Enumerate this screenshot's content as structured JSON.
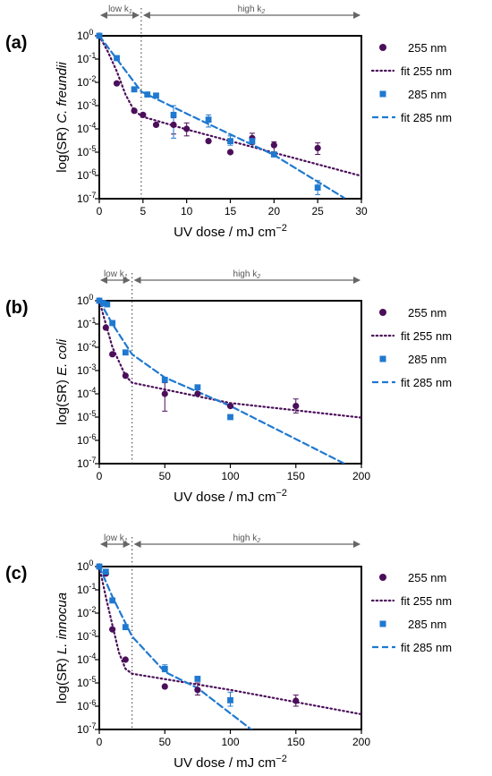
{
  "colors": {
    "c255": "#4b0f5a",
    "c285": "#2079d0",
    "arrow": "#666666"
  },
  "chart_data": [
    {
      "type": "scatter",
      "panel": "(a)",
      "species": "C. freundii",
      "xlabel": "UV dose / mJ cm",
      "xunit_exp": "−2",
      "ylabel_prefix": "log(SR) ",
      "xlim": [
        0,
        30
      ],
      "xticks": [
        0,
        5,
        10,
        15,
        20,
        25,
        30
      ],
      "ylim_exp": [
        -7,
        0
      ],
      "yscale": "log",
      "region_split": 4.8,
      "region_low": "low k",
      "region_low_sub": "1",
      "region_high": "high k",
      "region_high_sub": "2",
      "legend": [
        "255 nm",
        "fit 255 nm",
        "285 nm",
        "fit 285 nm"
      ],
      "series": [
        {
          "name": "255 nm",
          "points": [
            [
              0,
              1
            ],
            [
              2,
              0.009
            ],
            [
              4,
              0.0006
            ],
            [
              5,
              0.0004
            ],
            [
              6.5,
              0.00015
            ],
            [
              8.5,
              0.00015
            ],
            [
              10,
              0.0001
            ],
            [
              12.5,
              3e-05
            ],
            [
              15,
              1e-05
            ],
            [
              17.5,
              4e-05
            ],
            [
              20,
              2e-05
            ],
            [
              25,
              1.5e-05
            ]
          ],
          "errors": [
            null,
            null,
            null,
            null,
            null,
            [
              6e-05,
              0.0003
            ],
            [
              5e-05,
              0.00018
            ],
            null,
            null,
            [
              2.2e-05,
              6.5e-05
            ],
            [
              1e-05,
              2.8e-05
            ],
            [
              8e-06,
              2.5e-05
            ]
          ]
        },
        {
          "name": "285 nm",
          "points": [
            [
              0,
              1
            ],
            [
              2,
              0.11
            ],
            [
              4,
              0.005
            ],
            [
              5.5,
              0.003
            ],
            [
              6.5,
              0.0027
            ],
            [
              8.5,
              0.0004
            ],
            [
              12.5,
              0.00025
            ],
            [
              15,
              3e-05
            ],
            [
              17.5,
              3e-05
            ],
            [
              20,
              8e-06
            ],
            [
              25,
              3e-07
            ]
          ],
          "errors": [
            null,
            null,
            null,
            null,
            null,
            [
              4e-05,
              0.001
            ],
            [
              0.00012,
              0.0004
            ],
            [
              2e-05,
              5e-05
            ],
            null,
            null,
            [
              1.5e-07,
              6e-07
            ]
          ]
        },
        {
          "name": "fit 255 nm",
          "line": [
            [
              0,
              1
            ],
            [
              1,
              0.2
            ],
            [
              2,
              0.03
            ],
            [
              3,
              0.003
            ],
            [
              4,
              0.0006
            ],
            [
              5,
              0.00033
            ],
            [
              10,
              9.5e-05
            ],
            [
              20,
              9.5e-06
            ],
            [
              30,
              9.5e-07
            ]
          ]
        },
        {
          "name": "fit 285 nm",
          "line": [
            [
              0,
              1
            ],
            [
              4.8,
              0.004
            ],
            [
              10,
              0.00045
            ],
            [
              20,
              7.5e-06
            ],
            [
              28,
              1.1e-07
            ]
          ]
        }
      ]
    },
    {
      "type": "scatter",
      "panel": "(b)",
      "species": "E. coli",
      "xlabel": "UV dose / mJ cm",
      "xunit_exp": "−2",
      "ylabel_prefix": "log(SR) ",
      "xlim": [
        0,
        200
      ],
      "xticks": [
        0,
        50,
        100,
        150,
        200
      ],
      "ylim_exp": [
        -7,
        0
      ],
      "yscale": "log",
      "region_split": 25,
      "region_low": "low k",
      "region_low_sub": "1",
      "region_high": "high k",
      "region_high_sub": "2",
      "legend": [
        "255 nm",
        "fit 255 nm",
        "285 nm",
        "fit 285 nm"
      ],
      "series": [
        {
          "name": "255 nm",
          "points": [
            [
              0,
              1
            ],
            [
              5,
              0.07
            ],
            [
              10,
              0.005
            ],
            [
              20,
              0.0006
            ],
            [
              50,
              0.0001
            ],
            [
              75,
              0.0001
            ],
            [
              100,
              3e-05
            ],
            [
              150,
              3e-05
            ]
          ],
          "errors": [
            null,
            null,
            null,
            null,
            [
              1.8e-05,
              0.0003
            ],
            null,
            null,
            [
              1.5e-05,
              6e-05
            ]
          ]
        },
        {
          "name": "285 nm",
          "points": [
            [
              0,
              1
            ],
            [
              3,
              0.8
            ],
            [
              6,
              0.7
            ],
            [
              10,
              0.11
            ],
            [
              20,
              0.006
            ],
            [
              50,
              0.0004
            ],
            [
              75,
              0.00019
            ],
            [
              100,
              1e-05
            ]
          ],
          "errors": [
            null,
            null,
            null,
            null,
            null,
            null,
            null,
            null
          ]
        },
        {
          "name": "fit 255 nm",
          "line": [
            [
              0,
              1
            ],
            [
              5,
              0.1
            ],
            [
              10,
              0.01
            ],
            [
              20,
              0.0006
            ],
            [
              25,
              0.0003
            ],
            [
              100,
              4e-05
            ],
            [
              200,
              9.5e-06
            ]
          ]
        },
        {
          "name": "fit 285 nm",
          "line": [
            [
              0,
              1
            ],
            [
              10,
              0.1
            ],
            [
              25,
              0.005
            ],
            [
              50,
              0.0005
            ],
            [
              100,
              3e-05
            ],
            [
              187,
              1e-07
            ]
          ]
        }
      ]
    },
    {
      "type": "scatter",
      "panel": "(c)",
      "species": "L. innocua",
      "xlabel": "UV dose / mJ cm",
      "xunit_exp": "−2",
      "ylabel_prefix": "log(SR) ",
      "xlim": [
        0,
        200
      ],
      "xticks": [
        0,
        50,
        100,
        150,
        200
      ],
      "ylim_exp": [
        -7,
        0
      ],
      "yscale": "log",
      "region_split": 25,
      "region_low": "low k",
      "region_low_sub": "1",
      "region_high": "high k",
      "region_high_sub": "2",
      "legend": [
        "255 nm",
        "fit 255 nm",
        "285 nm",
        "fit 285 nm"
      ],
      "series": [
        {
          "name": "255 nm",
          "points": [
            [
              0,
              1
            ],
            [
              5,
              0.5
            ],
            [
              10,
              0.002
            ],
            [
              20,
              0.0001
            ],
            [
              50,
              7e-06
            ],
            [
              75,
              5e-06
            ],
            [
              150,
              1.7e-06
            ]
          ],
          "errors": [
            null,
            null,
            null,
            null,
            null,
            [
              3e-06,
              1e-05
            ],
            [
              1e-06,
              3e-06
            ]
          ]
        },
        {
          "name": "285 nm",
          "points": [
            [
              0,
              1
            ],
            [
              5,
              0.6
            ],
            [
              10,
              0.035
            ],
            [
              20,
              0.0025
            ],
            [
              50,
              4e-05
            ],
            [
              75,
              1.5e-05
            ],
            [
              100,
              1.8e-06
            ]
          ],
          "errors": [
            null,
            null,
            null,
            null,
            [
              3e-05,
              6e-05
            ],
            null,
            [
              1e-06,
              4e-06
            ]
          ]
        },
        {
          "name": "fit 255 nm",
          "line": [
            [
              0,
              1
            ],
            [
              5,
              0.05
            ],
            [
              10,
              0.003
            ],
            [
              15,
              0.0002
            ],
            [
              20,
              4e-05
            ],
            [
              25,
              2.5e-05
            ],
            [
              100,
              5e-06
            ],
            [
              200,
              4.5e-07
            ]
          ]
        },
        {
          "name": "fit 285 nm",
          "line": [
            [
              0,
              1
            ],
            [
              10,
              0.05
            ],
            [
              25,
              0.001
            ],
            [
              50,
              3e-05
            ],
            [
              75,
              6e-06
            ],
            [
              116,
              1e-07
            ]
          ]
        }
      ]
    }
  ]
}
